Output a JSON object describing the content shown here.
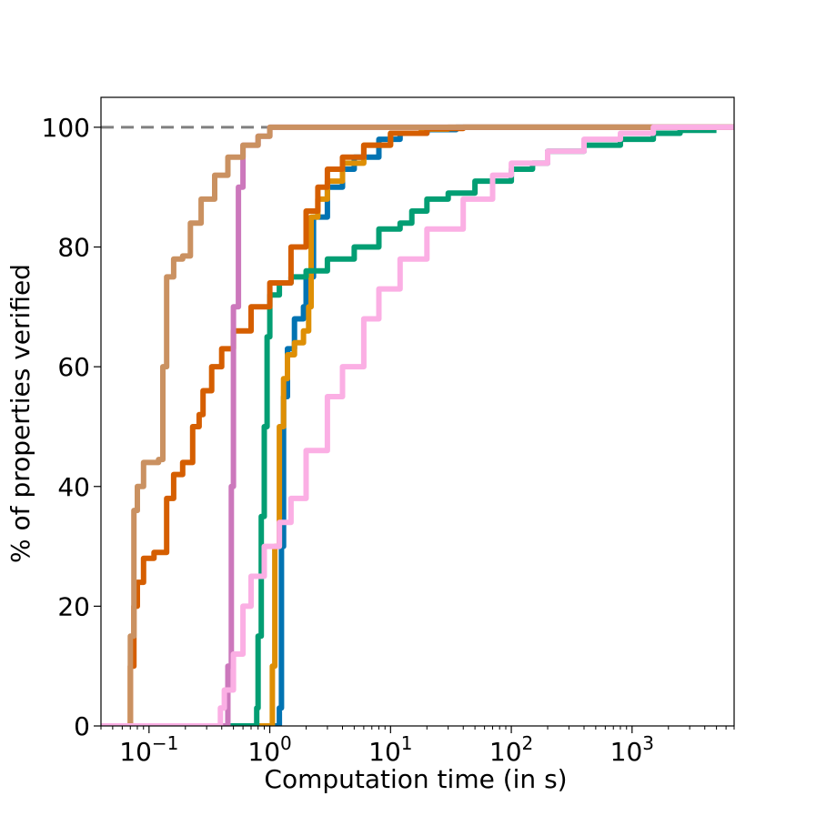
{
  "chart_data": {
    "type": "line",
    "title": "",
    "xlabel": "Computation time (in s)",
    "ylabel": "% of properties verified",
    "x_scale": "log",
    "xlim": [
      0.04,
      7000
    ],
    "ylim": [
      0,
      105
    ],
    "grid": false,
    "legend": "none",
    "x_ticks": [
      {
        "value": 0.1,
        "base": "10",
        "exp": "−1"
      },
      {
        "value": 1,
        "base": "10",
        "exp": "0"
      },
      {
        "value": 10,
        "base": "10",
        "exp": "1"
      },
      {
        "value": 100,
        "base": "10",
        "exp": "2"
      },
      {
        "value": 1000,
        "base": "10",
        "exp": "3"
      }
    ],
    "y_ticks": [
      "0",
      "20",
      "40",
      "60",
      "80",
      "100"
    ],
    "reference_line": {
      "y": 100,
      "style": "dashed",
      "color": "#808080"
    },
    "series": [
      {
        "color": "#0173B2",
        "points": [
          [
            0.04,
            0
          ],
          [
            1.15,
            0
          ],
          [
            1.2,
            3
          ],
          [
            1.25,
            30
          ],
          [
            1.3,
            55
          ],
          [
            1.4,
            63
          ],
          [
            1.6,
            68
          ],
          [
            1.9,
            70
          ],
          [
            2.0,
            75
          ],
          [
            2.3,
            85
          ],
          [
            3.0,
            90
          ],
          [
            4.0,
            93
          ],
          [
            5.0,
            95
          ],
          [
            8.0,
            98
          ],
          [
            12.0,
            99
          ],
          [
            20.0,
            99.6
          ],
          [
            35.0,
            100
          ],
          [
            7000,
            100
          ]
        ]
      },
      {
        "color": "#DE8F05",
        "points": [
          [
            0.04,
            0
          ],
          [
            1.0,
            0
          ],
          [
            1.05,
            10
          ],
          [
            1.1,
            30
          ],
          [
            1.2,
            50
          ],
          [
            1.3,
            58
          ],
          [
            1.4,
            62
          ],
          [
            1.6,
            64
          ],
          [
            1.9,
            66
          ],
          [
            2.1,
            70
          ],
          [
            2.2,
            85
          ],
          [
            2.5,
            88
          ],
          [
            3.0,
            91
          ],
          [
            4.0,
            94
          ],
          [
            6.0,
            97
          ],
          [
            10.0,
            99
          ],
          [
            18.0,
            99.7
          ],
          [
            30.0,
            100
          ],
          [
            7000,
            100
          ]
        ]
      },
      {
        "color": "#029E73",
        "points": [
          [
            0.04,
            0
          ],
          [
            0.75,
            0
          ],
          [
            0.78,
            3
          ],
          [
            0.8,
            15
          ],
          [
            0.85,
            35
          ],
          [
            0.9,
            50
          ],
          [
            0.95,
            65
          ],
          [
            1.0,
            72
          ],
          [
            1.2,
            74
          ],
          [
            1.5,
            75
          ],
          [
            2.0,
            76
          ],
          [
            3.0,
            78
          ],
          [
            5.0,
            80
          ],
          [
            8.0,
            83
          ],
          [
            12.0,
            84
          ],
          [
            15.0,
            86
          ],
          [
            20.0,
            88
          ],
          [
            30.0,
            89
          ],
          [
            50.0,
            91
          ],
          [
            100.0,
            93
          ],
          [
            150.0,
            94
          ],
          [
            200.0,
            96
          ],
          [
            400.0,
            97
          ],
          [
            800.0,
            98
          ],
          [
            1500.0,
            99
          ],
          [
            2500.0,
            99.5
          ],
          [
            5000.0,
            99.5
          ]
        ]
      },
      {
        "color": "#D55E00",
        "points": [
          [
            0.04,
            0
          ],
          [
            0.068,
            0
          ],
          [
            0.07,
            10
          ],
          [
            0.075,
            20
          ],
          [
            0.08,
            24
          ],
          [
            0.09,
            28
          ],
          [
            0.11,
            29
          ],
          [
            0.13,
            29
          ],
          [
            0.14,
            38
          ],
          [
            0.16,
            42
          ],
          [
            0.19,
            44
          ],
          [
            0.23,
            50
          ],
          [
            0.26,
            52
          ],
          [
            0.28,
            56
          ],
          [
            0.33,
            60
          ],
          [
            0.4,
            63
          ],
          [
            0.5,
            66
          ],
          [
            0.7,
            70
          ],
          [
            1.0,
            74
          ],
          [
            1.5,
            80
          ],
          [
            2.0,
            86
          ],
          [
            2.5,
            90
          ],
          [
            3.0,
            93
          ],
          [
            4.0,
            95
          ],
          [
            6.0,
            97
          ],
          [
            10.0,
            99
          ],
          [
            20.0,
            99.8
          ],
          [
            40.0,
            100
          ],
          [
            7000,
            100
          ]
        ]
      },
      {
        "color": "#CC78BC",
        "points": [
          [
            0.04,
            0
          ],
          [
            0.43,
            0
          ],
          [
            0.45,
            10
          ],
          [
            0.48,
            40
          ],
          [
            0.5,
            70
          ],
          [
            0.55,
            90
          ],
          [
            0.6,
            97
          ],
          [
            0.8,
            98.5
          ],
          [
            1.0,
            100
          ],
          [
            7000,
            100
          ]
        ]
      },
      {
        "color": "#CA9161",
        "points": [
          [
            0.04,
            0
          ],
          [
            0.068,
            0
          ],
          [
            0.07,
            15
          ],
          [
            0.075,
            36
          ],
          [
            0.08,
            40
          ],
          [
            0.09,
            44
          ],
          [
            0.12,
            44.5
          ],
          [
            0.13,
            60
          ],
          [
            0.14,
            75
          ],
          [
            0.16,
            78
          ],
          [
            0.19,
            78.5
          ],
          [
            0.22,
            84
          ],
          [
            0.27,
            88
          ],
          [
            0.35,
            92
          ],
          [
            0.45,
            95
          ],
          [
            0.6,
            97
          ],
          [
            0.8,
            98.5
          ],
          [
            1.0,
            100
          ],
          [
            7000,
            100
          ]
        ]
      },
      {
        "color": "#FBAFE4",
        "points": [
          [
            0.04,
            0
          ],
          [
            0.37,
            0
          ],
          [
            0.39,
            3
          ],
          [
            0.42,
            6
          ],
          [
            0.5,
            12
          ],
          [
            0.6,
            20
          ],
          [
            0.7,
            25
          ],
          [
            0.9,
            30
          ],
          [
            1.2,
            34
          ],
          [
            1.5,
            38
          ],
          [
            2.0,
            46
          ],
          [
            3.0,
            55
          ],
          [
            4.0,
            60
          ],
          [
            6.0,
            68
          ],
          [
            8.0,
            73
          ],
          [
            12.0,
            78
          ],
          [
            20.0,
            83
          ],
          [
            40.0,
            88
          ],
          [
            70.0,
            92
          ],
          [
            100.0,
            94
          ],
          [
            200.0,
            96
          ],
          [
            400.0,
            98
          ],
          [
            800.0,
            99
          ],
          [
            1500.0,
            100
          ],
          [
            7000,
            100
          ]
        ]
      }
    ]
  }
}
